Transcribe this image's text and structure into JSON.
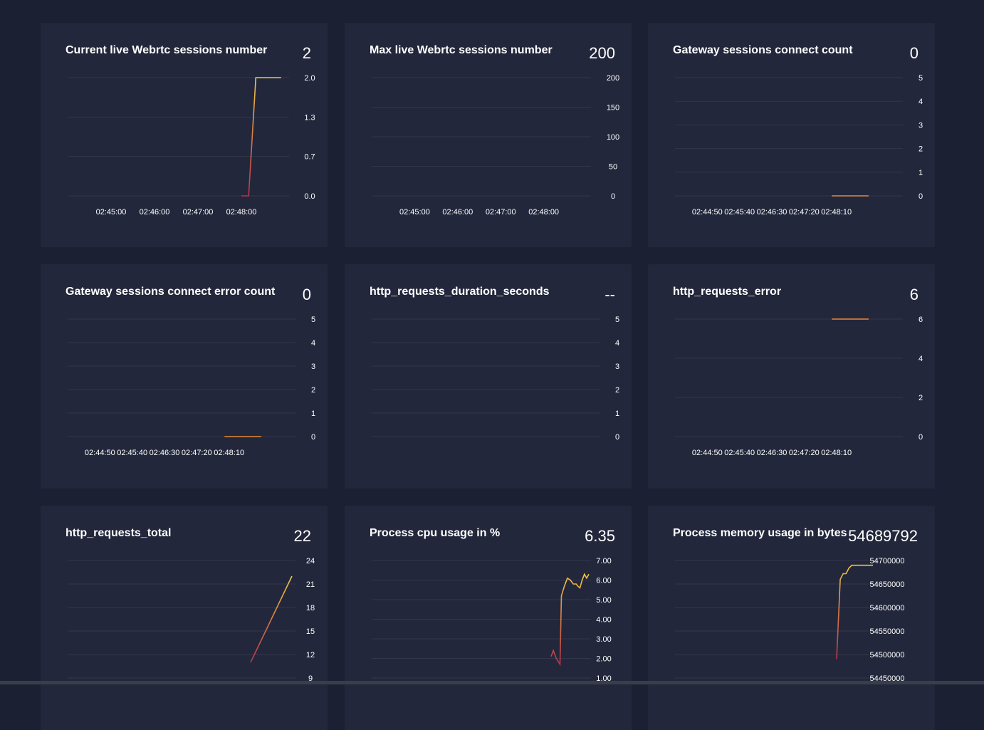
{
  "theme": {
    "background": "#1c2033",
    "panel": "#23273b",
    "grid": "#32374b",
    "line_start": "#b9344a",
    "line_end": "#f2c744"
  },
  "panels": [
    {
      "title": "Current live Webrtc sessions number",
      "value": "2"
    },
    {
      "title": "Max live Webrtc sessions number",
      "value": "200"
    },
    {
      "title": "Gateway sessions connect count",
      "value": "0"
    },
    {
      "title": "Gateway sessions connect error count",
      "value": "0"
    },
    {
      "title": "http_requests_duration_seconds",
      "value": "--"
    },
    {
      "title": "http_requests_error",
      "value": "6"
    },
    {
      "title": "http_requests_total",
      "value": "22"
    },
    {
      "title": "Process cpu usage in %",
      "value": "6.35"
    },
    {
      "title": "Process memory usage in bytes",
      "value": "54689792"
    }
  ],
  "chart_data": [
    {
      "type": "line",
      "title": "Current live Webrtc sessions number",
      "ylim": [
        0,
        2
      ],
      "y_ticks": [
        "2.0",
        "1.3",
        "0.7",
        "0.0"
      ],
      "x_ticks": [
        "02:45:00",
        "02:46:00",
        "02:47:00",
        "02:48:00"
      ],
      "xlim": [
        0,
        260
      ],
      "x_tick_pos": [
        60,
        120,
        180,
        240
      ],
      "series": [
        {
          "x": [
            240,
            250,
            260,
            295
          ],
          "values": [
            0,
            0,
            2,
            2
          ]
        }
      ]
    },
    {
      "type": "line",
      "title": "Max live Webrtc sessions number",
      "ylim": [
        0,
        200
      ],
      "y_ticks": [
        "200",
        "150",
        "100",
        "50",
        "0"
      ],
      "x_ticks": [
        "02:45:00",
        "02:46:00",
        "02:47:00",
        "02:48:00"
      ],
      "xlim": [
        0,
        260
      ],
      "x_tick_pos": [
        60,
        120,
        180,
        240
      ],
      "series": []
    },
    {
      "type": "line",
      "title": "Gateway sessions connect count",
      "ylim": [
        0,
        5
      ],
      "y_ticks": [
        "5",
        "4",
        "3",
        "2",
        "1",
        "0"
      ],
      "x_ticks": [
        "02:44:50",
        "02:45:40",
        "02:46:30",
        "02:47:20",
        "02:48:10"
      ],
      "xlim": [
        0,
        300
      ],
      "x_tick_pos": [
        50,
        100,
        150,
        200,
        250
      ],
      "series": [
        {
          "x": [
            243,
            300
          ],
          "values": [
            0,
            0
          ]
        }
      ]
    },
    {
      "type": "line",
      "title": "Gateway sessions connect error count",
      "ylim": [
        0,
        5
      ],
      "y_ticks": [
        "5",
        "4",
        "3",
        "2",
        "1",
        "0"
      ],
      "x_ticks": [
        "02:44:50",
        "02:45:40",
        "02:46:30",
        "02:47:20",
        "02:48:10"
      ],
      "xlim": [
        0,
        300
      ],
      "x_tick_pos": [
        50,
        100,
        150,
        200,
        250
      ],
      "series": [
        {
          "x": [
            243,
            300
          ],
          "values": [
            0,
            0
          ]
        }
      ]
    },
    {
      "type": "line",
      "title": "http_requests_duration_seconds",
      "ylim": [
        0,
        5
      ],
      "y_ticks": [
        "5",
        "4",
        "3",
        "2",
        "1",
        "0"
      ],
      "x_ticks": [],
      "series": []
    },
    {
      "type": "line",
      "title": "http_requests_error",
      "ylim": [
        0,
        6
      ],
      "y_ticks": [
        "6",
        "4",
        "2",
        "0"
      ],
      "x_ticks": [
        "02:44:50",
        "02:45:40",
        "02:46:30",
        "02:47:20",
        "02:48:10"
      ],
      "xlim": [
        0,
        300
      ],
      "x_tick_pos": [
        50,
        100,
        150,
        200,
        250
      ],
      "series": [
        {
          "x": [
            243,
            300
          ],
          "values": [
            6,
            6
          ]
        }
      ]
    },
    {
      "type": "line",
      "title": "http_requests_total",
      "ylim": [
        9,
        24
      ],
      "y_ticks": [
        "24",
        "21",
        "18",
        "15",
        "12",
        "9"
      ],
      "x_ticks": [],
      "series": [
        {
          "x": [
            0,
            1
          ],
          "values": [
            11,
            22
          ]
        }
      ]
    },
    {
      "type": "line",
      "title": "Process cpu usage in %",
      "ylim": [
        1,
        7
      ],
      "y_ticks": [
        "7.00",
        "6.00",
        "5.00",
        "4.00",
        "3.00",
        "2.00",
        "1.00"
      ],
      "x_ticks": [],
      "series": [
        {
          "x": [
            0,
            3,
            7,
            12,
            14,
            18,
            22,
            26,
            30,
            34,
            36,
            39,
            42,
            45,
            48,
            51
          ],
          "values": [
            2.1,
            2.4,
            2.0,
            1.7,
            5.2,
            5.7,
            6.1,
            6.0,
            5.8,
            5.8,
            5.7,
            5.6,
            6.0,
            6.3,
            6.1,
            6.3
          ]
        }
      ]
    },
    {
      "type": "line",
      "title": "Process memory usage in bytes",
      "ylim": [
        54450000,
        54700000
      ],
      "y_ticks": [
        "54700000",
        "54650000",
        "54600000",
        "54550000",
        "54500000",
        "54450000"
      ],
      "x_ticks": [],
      "series": [
        {
          "x": [
            0,
            5,
            9,
            13,
            17,
            21,
            50
          ],
          "values": [
            54490000,
            54660000,
            54672000,
            54672000,
            54684000,
            54689792,
            54689792
          ]
        }
      ]
    }
  ]
}
